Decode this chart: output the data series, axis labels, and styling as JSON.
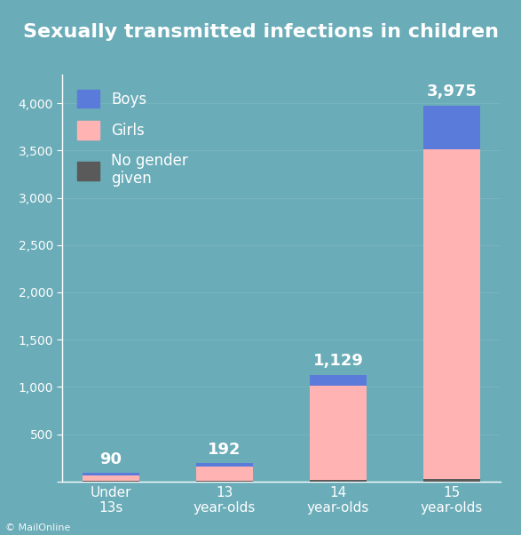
{
  "title": "Sexually transmitted infections in children",
  "categories": [
    "Under\n13s",
    "13\nyear-olds",
    "14\nyear-olds",
    "15\nyear-olds"
  ],
  "totals": [
    90,
    192,
    1129,
    3975
  ],
  "girls": [
    60,
    155,
    990,
    3490
  ],
  "boys": [
    22,
    30,
    120,
    460
  ],
  "no_gender": [
    8,
    7,
    19,
    25
  ],
  "colors": {
    "boys": "#5b7bdb",
    "girls": "#ffb3b3",
    "no_gender": "#5a5a5a"
  },
  "background_color": "#6aacb8",
  "title_bg": "#1a1a1a",
  "text_color": "#ffffff",
  "ylim": [
    0,
    4300
  ],
  "yticks": [
    0,
    500,
    1000,
    1500,
    2000,
    2500,
    3000,
    3500,
    4000
  ],
  "legend_labels": [
    "Boys",
    "Girls",
    "No gender\ngiven"
  ],
  "watermark": "MailOnline"
}
